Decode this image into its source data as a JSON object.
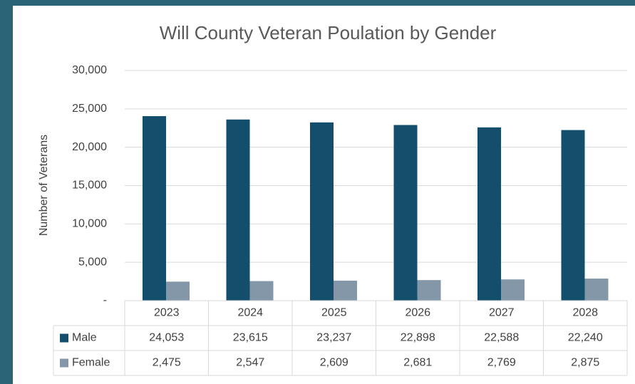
{
  "chart_data": {
    "type": "bar",
    "title": "Will County Veteran Poulation by Gender",
    "y_label": "Number of Veterans",
    "categories": [
      "2023",
      "2024",
      "2025",
      "2026",
      "2027",
      "2028"
    ],
    "series": [
      {
        "name": "Male",
        "color": "#134f6c",
        "values": [
          24053,
          23615,
          23237,
          22898,
          22588,
          22240
        ],
        "value_labels": [
          "24,053",
          "23,615",
          "23,237",
          "22,898",
          "22,588",
          "22,240"
        ]
      },
      {
        "name": "Female",
        "color": "#8497a8",
        "values": [
          2475,
          2547,
          2609,
          2681,
          2769,
          2875
        ],
        "value_labels": [
          "2,475",
          "2,547",
          "2,609",
          "2,681",
          "2,769",
          "2,875"
        ]
      }
    ],
    "ylim": [
      0,
      30000
    ],
    "yticks": [
      {
        "value": 0,
        "label": "-"
      },
      {
        "value": 5000,
        "label": "5,000"
      },
      {
        "value": 10000,
        "label": "10,000"
      },
      {
        "value": 15000,
        "label": "15,000"
      },
      {
        "value": 20000,
        "label": "20,000"
      },
      {
        "value": 25000,
        "label": "25,000"
      },
      {
        "value": 30000,
        "label": "30,000"
      }
    ],
    "grid": true
  }
}
